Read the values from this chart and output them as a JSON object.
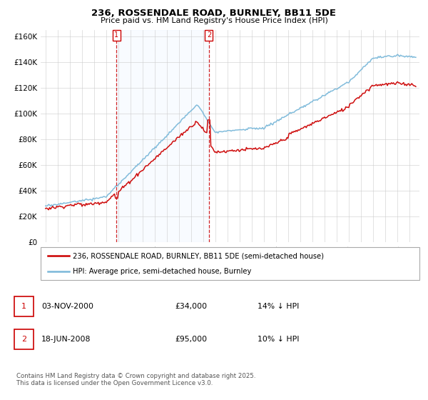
{
  "title": "236, ROSSENDALE ROAD, BURNLEY, BB11 5DE",
  "subtitle": "Price paid vs. HM Land Registry's House Price Index (HPI)",
  "ylim": [
    0,
    165000
  ],
  "yticks": [
    0,
    20000,
    40000,
    60000,
    80000,
    100000,
    120000,
    140000,
    160000
  ],
  "ytick_labels": [
    "£0",
    "£20K",
    "£40K",
    "£60K",
    "£80K",
    "£100K",
    "£120K",
    "£140K",
    "£160K"
  ],
  "purchase1_date": 2000.84,
  "purchase2_date": 2008.46,
  "purchase1_price": 34000,
  "purchase2_price": 95000,
  "hpi_color": "#7ab8d9",
  "price_color": "#cc0000",
  "vline_color": "#cc0000",
  "highlight_color": "#ddeeff",
  "legend_label_price": "236, ROSSENDALE ROAD, BURNLEY, BB11 5DE (semi-detached house)",
  "legend_label_hpi": "HPI: Average price, semi-detached house, Burnley",
  "annotation1": "03-NOV-2000",
  "annotation1_price": "£34,000",
  "annotation1_hpi": "14% ↓ HPI",
  "annotation2": "18-JUN-2008",
  "annotation2_price": "£95,000",
  "annotation2_hpi": "10% ↓ HPI",
  "footer": "Contains HM Land Registry data © Crown copyright and database right 2025.\nThis data is licensed under the Open Government Licence v3.0."
}
